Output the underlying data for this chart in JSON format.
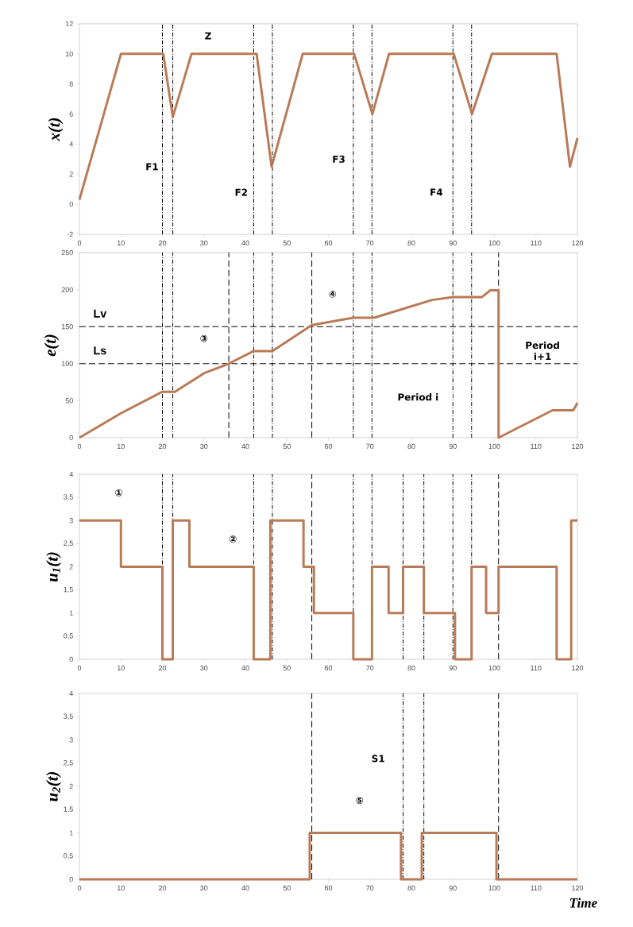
{
  "chart_data": [
    {
      "type": "line",
      "ylabel": "x(t)",
      "xlim": [
        0,
        120
      ],
      "xticks": [
        0,
        10,
        20,
        30,
        40,
        50,
        60,
        70,
        80,
        90,
        100,
        110,
        120
      ],
      "ylim": [
        -2,
        12
      ],
      "yticks": [
        -2,
        0,
        2,
        4,
        6,
        8,
        10,
        12
      ],
      "line_style": "solid",
      "series": [
        {
          "color": "#b97a57",
          "x": [
            0,
            10,
            20.2,
            22.5,
            27,
            42.7,
            46.3,
            53.8,
            66.2,
            70.6,
            74.6,
            90.2,
            94.6,
            99.4,
            115,
            118.2,
            120
          ],
          "values": [
            0.3,
            10,
            10,
            5.8,
            10,
            10,
            2.5,
            10,
            10,
            6,
            10,
            10,
            6,
            10,
            10,
            2.5,
            4.4
          ]
        }
      ],
      "ref_lines": [
        {
          "axis": "x",
          "value": 20,
          "line_style": "dashdot"
        },
        {
          "axis": "x",
          "value": 22.5,
          "line_style": "dashdot"
        },
        {
          "axis": "x",
          "value": 42,
          "line_style": "dashdot"
        },
        {
          "axis": "x",
          "value": 46.5,
          "line_style": "dashdot"
        },
        {
          "axis": "x",
          "value": 66,
          "line_style": "dashdot"
        },
        {
          "axis": "x",
          "value": 70.5,
          "line_style": "dashdot"
        },
        {
          "axis": "x",
          "value": 90,
          "line_style": "dashdot"
        },
        {
          "axis": "x",
          "value": 94.5,
          "line_style": "dashdot"
        }
      ],
      "annotations": [
        {
          "text": "Z",
          "x": 31,
          "y": 11.2
        },
        {
          "text": "F1",
          "x": 17.5,
          "y": 2.5
        },
        {
          "text": "F2",
          "x": 39,
          "y": 0.8
        },
        {
          "text": "F3",
          "x": 62.5,
          "y": 3
        },
        {
          "text": "F4",
          "x": 86,
          "y": 0.8
        }
      ]
    },
    {
      "type": "line",
      "ylabel": "e(t)",
      "xlim": [
        0,
        120
      ],
      "xticks": [
        0,
        10,
        20,
        30,
        40,
        50,
        60,
        70,
        80,
        90,
        100,
        110,
        120
      ],
      "ylim": [
        0,
        250
      ],
      "yticks": [
        0,
        50,
        100,
        150,
        200,
        250
      ],
      "line_style": "solid",
      "series": [
        {
          "color": "#b97a57",
          "x": [
            0,
            10,
            20,
            23,
            30,
            36,
            42,
            46.5,
            56,
            66,
            71,
            85,
            90,
            97,
            99,
            101,
            101,
            114,
            119,
            120
          ],
          "values": [
            0,
            33,
            62,
            62,
            87,
            100,
            117,
            117,
            152,
            162,
            162,
            186,
            190,
            190,
            199,
            199,
            0,
            37,
            37,
            47
          ]
        }
      ],
      "ref_lines": [
        {
          "axis": "x",
          "value": 20,
          "line_style": "dashdot"
        },
        {
          "axis": "x",
          "value": 22.5,
          "line_style": "dashdot"
        },
        {
          "axis": "x",
          "value": 42,
          "line_style": "dashdot"
        },
        {
          "axis": "x",
          "value": 46.5,
          "line_style": "dashdot"
        },
        {
          "axis": "x",
          "value": 66,
          "line_style": "dashdot"
        },
        {
          "axis": "x",
          "value": 70.5,
          "line_style": "dashdot"
        },
        {
          "axis": "x",
          "value": 90,
          "line_style": "dashdot"
        },
        {
          "axis": "x",
          "value": 94.5,
          "line_style": "dashdot"
        },
        {
          "axis": "x",
          "value": 36,
          "line_style": "dashed"
        },
        {
          "axis": "x",
          "value": 56,
          "line_style": "dashed"
        },
        {
          "axis": "x",
          "value": 101,
          "line_style": "dashed"
        },
        {
          "axis": "y",
          "value": 150,
          "label": "Lv",
          "line_style": "dashed"
        },
        {
          "axis": "y",
          "value": 100,
          "label": "Ls",
          "line_style": "dashed"
        }
      ],
      "annotations": [
        {
          "text": "③",
          "x": 30,
          "y": 134
        },
        {
          "text": "④",
          "x": 61,
          "y": 194
        },
        "Period i",
        "Period i+1"
      ]
    },
    {
      "type": "line",
      "ylabel": "u$_{1}$(t)",
      "xlim": [
        0,
        120
      ],
      "xticks": [
        0,
        10,
        20,
        30,
        40,
        50,
        60,
        70,
        80,
        90,
        100,
        110,
        120
      ],
      "ylim": [
        0,
        4
      ],
      "yticks": [
        0,
        {
          "value": 0.5,
          "label": "0,5"
        },
        1,
        {
          "value": 1.5,
          "label": "1,5"
        },
        2,
        {
          "value": 2.5,
          "label": "2,5"
        },
        3,
        {
          "value": 3.5,
          "label": "3,5"
        },
        4
      ],
      "line_style": "solid",
      "series": [
        {
          "color": "#b97a57",
          "x": [
            0,
            10,
            10,
            20,
            20,
            22.5,
            22.5,
            26.5,
            26.5,
            42,
            42,
            46,
            46,
            54,
            54,
            56.5,
            56.5,
            66,
            66,
            70.5,
            70.5,
            74.5,
            74.5,
            78,
            78,
            83,
            83,
            90.5,
            90.5,
            94.5,
            94.5,
            98,
            98,
            101,
            101,
            115,
            115,
            118.5,
            118.5,
            120
          ],
          "values": [
            3,
            3,
            2,
            2,
            0,
            0,
            3,
            3,
            2,
            2,
            0,
            0,
            3,
            3,
            2,
            2,
            1,
            1,
            0,
            0,
            2,
            2,
            1,
            1,
            2,
            2,
            1,
            1,
            0,
            0,
            2,
            2,
            1,
            1,
            2,
            2,
            0,
            0,
            3,
            3
          ]
        }
      ],
      "ref_lines": [
        {
          "axis": "x",
          "value": 20,
          "line_style": "dashdot"
        },
        {
          "axis": "x",
          "value": 22.5,
          "line_style": "dashdot"
        },
        {
          "axis": "x",
          "value": 42,
          "line_style": "dashdot"
        },
        {
          "axis": "x",
          "value": 46.5,
          "line_style": "dashdot"
        },
        {
          "axis": "x",
          "value": 66,
          "line_style": "dashdot"
        },
        {
          "axis": "x",
          "value": 70.5,
          "line_style": "dashdot"
        },
        {
          "axis": "x",
          "value": 90,
          "line_style": "dashdot"
        },
        {
          "axis": "x",
          "value": 94.5,
          "line_style": "dashdot"
        },
        {
          "axis": "x",
          "value": 78,
          "line_style": "dashdot"
        },
        {
          "axis": "x",
          "value": 83,
          "line_style": "dashdot"
        },
        {
          "axis": "x",
          "value": 56,
          "line_style": "dashed"
        },
        {
          "axis": "x",
          "value": 101,
          "line_style": "dashed"
        }
      ],
      "annotations": [
        {
          "text": "①",
          "x": 9.5,
          "y": 3.6
        },
        {
          "text": "②",
          "x": 37,
          "y": 2.6
        }
      ]
    },
    {
      "type": "line",
      "ylabel": "u$_{2}$(t)",
      "xlabel": "Time",
      "xlim": [
        0,
        120
      ],
      "xticks": [
        0,
        10,
        20,
        30,
        40,
        50,
        60,
        70,
        80,
        90,
        100,
        110,
        120
      ],
      "ylim": [
        0,
        4
      ],
      "yticks": [
        0,
        {
          "value": 0.5,
          "label": "0,5"
        },
        1,
        {
          "value": 1.5,
          "label": "1,5"
        },
        2,
        {
          "value": 2.5,
          "label": "2,5"
        },
        3,
        {
          "value": 3.5,
          "label": "3,5"
        },
        4
      ],
      "line_style": "solid",
      "series": [
        {
          "color": "#b97a57",
          "x": [
            0,
            55.5,
            55.5,
            77.5,
            77.5,
            82.5,
            82.5,
            100.5,
            100.5,
            120
          ],
          "values": [
            0,
            0,
            1,
            1,
            0,
            0,
            1,
            1,
            0,
            0
          ]
        }
      ],
      "ref_lines": [
        {
          "axis": "x",
          "value": 78,
          "line_style": "dashdot"
        },
        {
          "axis": "x",
          "value": 83,
          "line_style": "dashdot"
        },
        {
          "axis": "x",
          "value": 56,
          "line_style": "dashed"
        },
        {
          "axis": "x",
          "value": 101,
          "line_style": "dashed"
        }
      ],
      "annotations": [
        {
          "text": "S1",
          "x": 72,
          "y": 2.6
        },
        {
          "text": "⑤",
          "x": 67.5,
          "y": 1.7
        }
      ]
    }
  ]
}
